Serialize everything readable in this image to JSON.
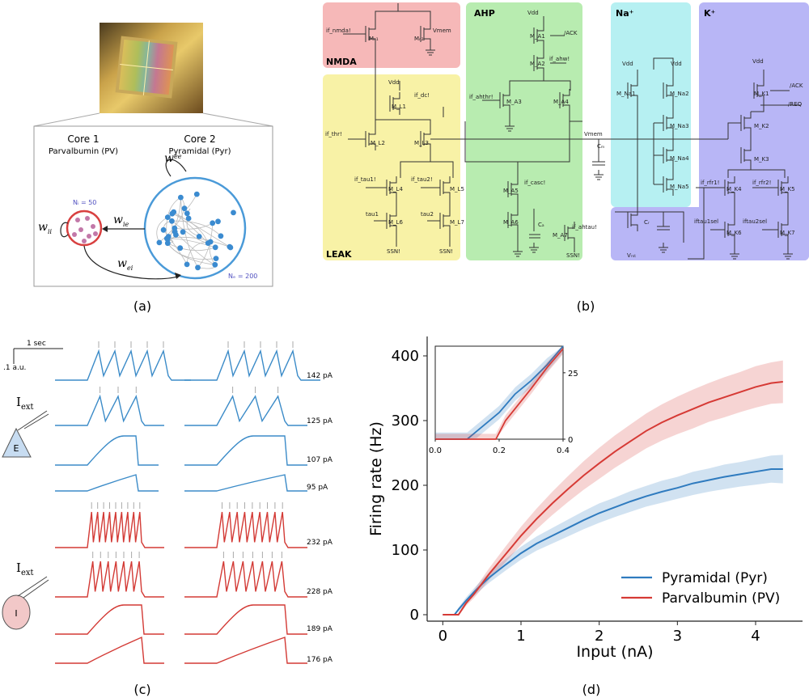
{
  "captions": {
    "a": "(a)",
    "b": "(b)",
    "c": "(c)",
    "d": "(d)"
  },
  "panel_a": {
    "core1_title": "Core 1",
    "core1_sub": "Parvalbumin (PV)",
    "core2_title": "Core 2",
    "core2_sub": "Pyramidal (Pyr)",
    "ni": "Nᵢ = 50",
    "ne": "Nₑ = 200",
    "w_ee": "w",
    "w_ee_sub": "ee",
    "w_ii": "w",
    "w_ii_sub": "ii",
    "w_ie": "w",
    "w_ie_sub": "ie",
    "w_ei": "w",
    "w_ei_sub": "ei"
  },
  "panel_b": {
    "nmda": "NMDA",
    "leak": "LEAK",
    "ahp": "AHP",
    "na": "Na⁺",
    "k": "K⁺",
    "labels": {
      "if_nmda": "if_nmda!",
      "vmem": "Vmem",
      "mn1": "Mₙ₁",
      "mn2": "Mₙ₂",
      "vdd": "Vdd",
      "if_dc": "if_dc!",
      "if_thr": "if_thr!",
      "if_tau1": "if_tau1!",
      "if_tau2": "if_tau2!",
      "tau1": "tau1",
      "tau2": "tau2",
      "ssn": "SSN!",
      "ack": "/ACK",
      "if_ahw": "if_ahw!",
      "if_ahthr": "if_ahthr!",
      "if_casc": "if_casc!",
      "if_ahtau": "if_ahtau!",
      "ca": "Cₐ",
      "cm": "Cₘ",
      "vrst": "Vᵣₛₜ",
      "req": "/REQ",
      "if_rfr1": "if_rfr1!",
      "if_rfr2": "if_rfr2!",
      "iftau1sel": "iftau1sel",
      "iftau2sel": "iftau2sel",
      "cr": "Cᵣ",
      "ml1": "M_L1",
      "ml2": "M_L2",
      "ml3": "M_L3",
      "ml4": "M_L4",
      "ml5": "M_L5",
      "ml6": "M_L6",
      "ml7": "M_L7",
      "ma1": "M_A1",
      "ma2": "M_A2",
      "ma3": "M_A3",
      "ma4": "M_A4",
      "ma5": "M_A5",
      "ma6": "M_A6",
      "ma7": "M_A7",
      "mna1": "M_Na1",
      "mna2": "M_Na2",
      "mna3": "M_Na3",
      "mna4": "M_Na4",
      "mna5": "M_Na5",
      "mk1": "M_K1",
      "mk2": "M_K2",
      "mk3": "M_K3",
      "mk4": "M_K4",
      "mk5": "M_K5",
      "mk6": "M_K6",
      "mk7": "M_K7"
    }
  },
  "panel_c": {
    "scale_time": "1 sec",
    "scale_amp": ".1 a.u.",
    "iext": "I",
    "iext_sub": "ext",
    "cell_e": "E",
    "cell_i": "I",
    "currents": [
      "142 pA",
      "125 pA",
      "107 pA",
      "95 pA",
      "232 pA",
      "228 pA",
      "189 pA",
      "176 pA"
    ],
    "colors": {
      "excitatory": "#3b8bc8",
      "inhibitory": "#d33a35"
    }
  },
  "chart_data": {
    "type": "line",
    "title": "",
    "xlabel": "Input (nA)",
    "ylabel": "Firing rate (Hz)",
    "xlim": [
      -0.2,
      4.6
    ],
    "ylim": [
      -10,
      430
    ],
    "xticks": [
      0,
      1,
      2,
      3,
      4
    ],
    "yticks": [
      0,
      100,
      200,
      300,
      400
    ],
    "legend_position": "bottom-right",
    "series": [
      {
        "name": "Pyramidal (Pyr)",
        "color": "#2f7bbf",
        "x": [
          0,
          0.1,
          0.15,
          0.2,
          0.3,
          0.4,
          0.5,
          0.6,
          0.8,
          1.0,
          1.2,
          1.4,
          1.6,
          1.8,
          2.0,
          2.2,
          2.4,
          2.6,
          2.8,
          3.0,
          3.2,
          3.4,
          3.6,
          3.8,
          4.0,
          4.2,
          4.35
        ],
        "y": [
          0,
          0,
          0,
          8,
          22,
          35,
          47,
          58,
          77,
          95,
          110,
          122,
          134,
          146,
          157,
          166,
          175,
          183,
          190,
          196,
          203,
          208,
          213,
          217,
          221,
          225,
          225
        ],
        "band": [
          0,
          0,
          0,
          3,
          5,
          6,
          7,
          8,
          9,
          10,
          11,
          12,
          13,
          14,
          15,
          15,
          16,
          16,
          17,
          17,
          18,
          18,
          19,
          19,
          20,
          21,
          22
        ]
      },
      {
        "name": "Parvalbumin (PV)",
        "color": "#d63a35",
        "x": [
          0,
          0.1,
          0.15,
          0.2,
          0.3,
          0.4,
          0.5,
          0.6,
          0.8,
          1.0,
          1.2,
          1.4,
          1.6,
          1.8,
          2.0,
          2.2,
          2.4,
          2.6,
          2.8,
          3.0,
          3.2,
          3.4,
          3.6,
          3.8,
          4.0,
          4.2,
          4.35
        ],
        "y": [
          0,
          0,
          0,
          0,
          18,
          32,
          48,
          64,
          93,
          122,
          148,
          172,
          194,
          215,
          234,
          252,
          268,
          284,
          297,
          308,
          318,
          328,
          336,
          344,
          352,
          358,
          360
        ],
        "band": [
          0,
          0,
          0,
          2,
          4,
          6,
          8,
          9,
          12,
          14,
          16,
          18,
          20,
          22,
          24,
          25,
          26,
          27,
          28,
          29,
          30,
          30,
          31,
          31,
          32,
          32,
          33
        ]
      }
    ],
    "inset": {
      "xlim": [
        0,
        0.4
      ],
      "ylim": [
        0,
        35
      ],
      "xticks": [
        "0.0",
        "0.2",
        "0.4"
      ],
      "yticks": [
        "0",
        "25"
      ]
    }
  }
}
